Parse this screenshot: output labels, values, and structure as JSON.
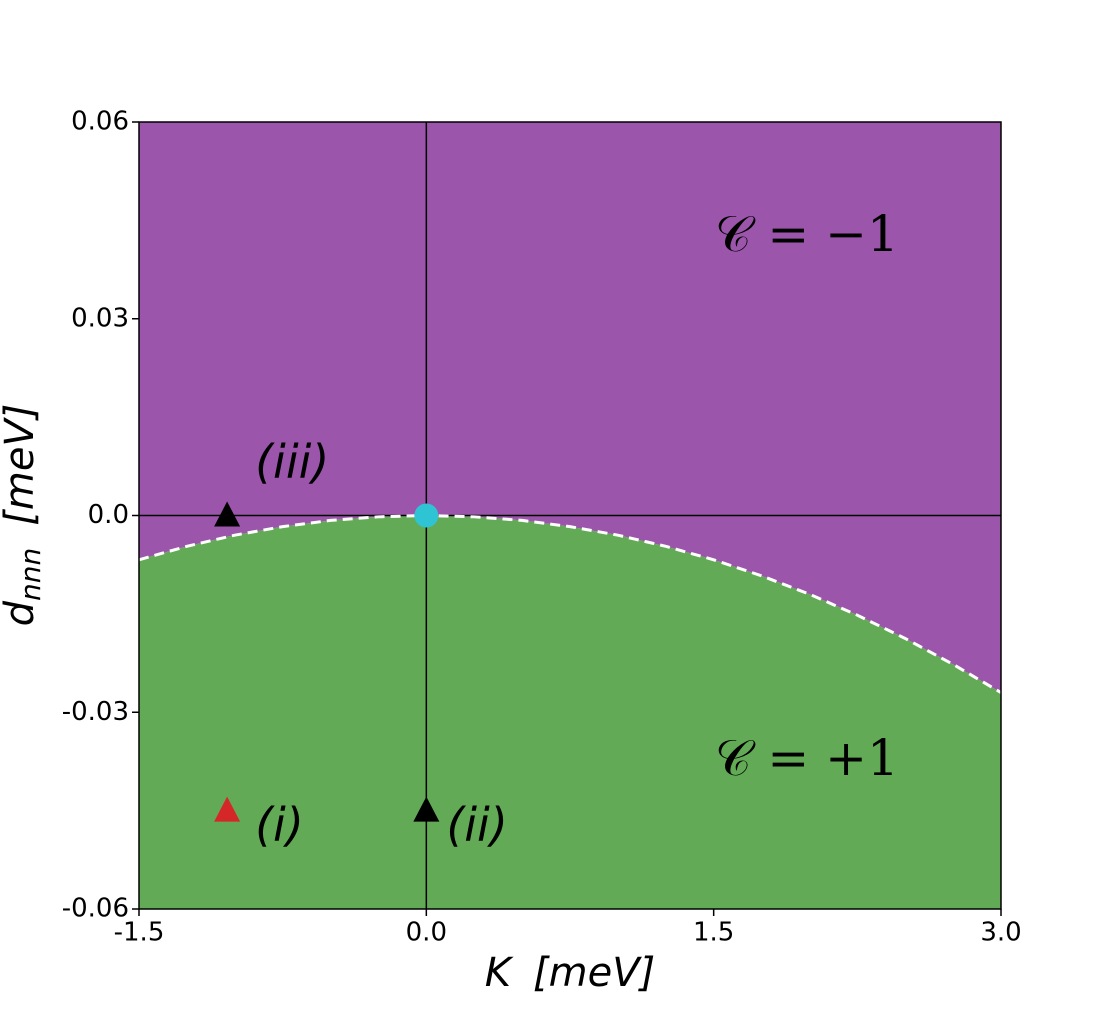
{
  "chart_data": {
    "type": "phase-diagram",
    "xlabel": {
      "symbol": "K",
      "unit": "[meV]"
    },
    "ylabel": {
      "symbol": "d",
      "subscript": "nnn",
      "unit": "[meV]"
    },
    "xlim": [
      -1.5,
      3.0
    ],
    "ylim": [
      -0.06,
      0.06
    ],
    "xticks": [
      -1.5,
      {
        "value": 0,
        "label": "0.0"
      },
      1.5,
      {
        "value": 3,
        "label": "3.0"
      }
    ],
    "yticks": [
      0.06,
      0.03,
      {
        "value": 0,
        "label": "0.0"
      },
      -0.03,
      -0.06
    ],
    "reference_lines": {
      "x": [
        0
      ],
      "y": [
        0
      ],
      "color": "#000000"
    },
    "boundary": {
      "x": [
        -1.5,
        -1.25,
        -1.0,
        -0.75,
        -0.5,
        -0.25,
        0,
        0.25,
        0.5,
        0.75,
        1.0,
        1.25,
        1.5,
        1.75,
        2.0,
        2.25,
        2.5,
        2.75,
        3.0
      ],
      "values": [
        -0.00675,
        -0.0047,
        -0.003,
        -0.0017,
        -0.00075,
        -0.0002,
        0,
        -0.0002,
        -0.00075,
        -0.0017,
        -0.003,
        -0.0047,
        -0.00675,
        -0.0092,
        -0.012,
        -0.0152,
        -0.01875,
        -0.0227,
        -0.027
      ],
      "color": "#ffffff",
      "dash": true
    },
    "regions": [
      {
        "label": "𝒞 = −1",
        "color": "#9b55aa",
        "side": "above"
      },
      {
        "label": "𝒞 = +1",
        "color": "#62aa55",
        "side": "below"
      }
    ],
    "points": [
      {
        "x": 0,
        "y": 0,
        "marker": "circle",
        "color": "#2ec4d4"
      },
      {
        "x": -1.04,
        "y": 0,
        "marker": "triangle",
        "color": "#000000",
        "label": "(iii)"
      },
      {
        "x": 0,
        "y": -0.045,
        "marker": "triangle",
        "color": "#000000",
        "label": "(ii)"
      },
      {
        "x": -1.04,
        "y": -0.045,
        "marker": "triangle",
        "color": "#d62728",
        "label": "(i)"
      }
    ]
  }
}
